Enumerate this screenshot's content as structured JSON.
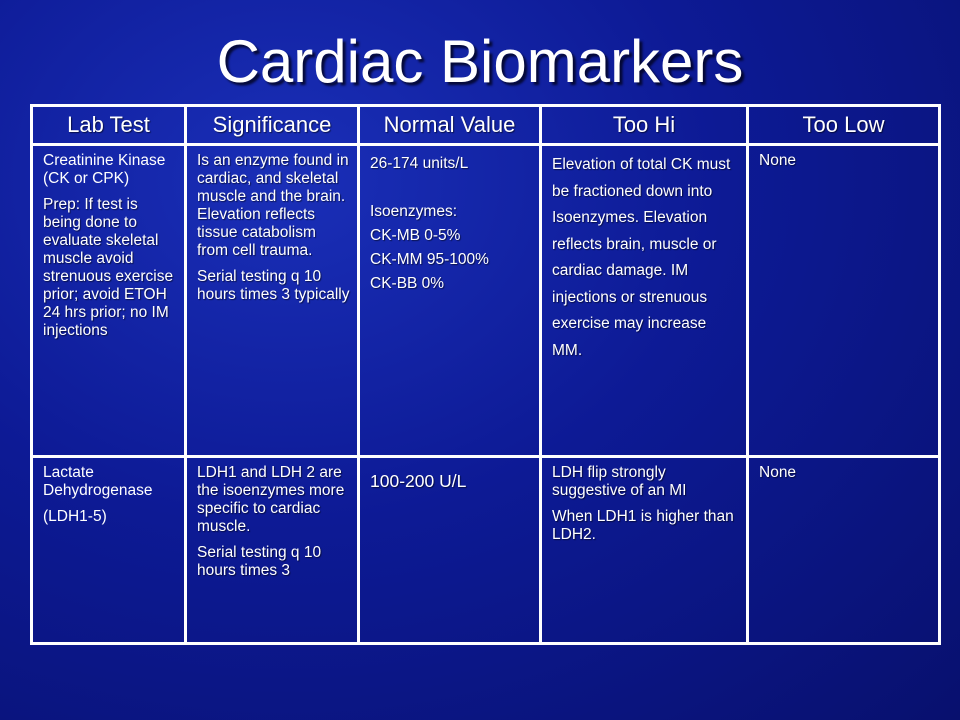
{
  "title": "Cardiac Biomarkers",
  "colors": {
    "background": "#0d1a95",
    "text": "#ffffff",
    "border": "#ffffff"
  },
  "table": {
    "headers": [
      "Lab Test",
      "Significance",
      "Normal Value",
      "Too Hi",
      "Too Low"
    ],
    "rows": [
      {
        "lab_test": {
          "name": "Creatinine Kinase (CK or CPK)",
          "prep": "Prep: If test is being done to evaluate skeletal muscle avoid strenuous exercise prior; avoid ETOH 24 hrs prior; no IM injections"
        },
        "significance": {
          "text": "Is an enzyme found in cardiac, and skeletal muscle and the brain. Elevation reflects tissue catabolism from cell trauma.",
          "serial": "Serial testing q 10 hours times 3 typically"
        },
        "normal_value": {
          "range": "26-174 units/L",
          "isoenzymes_label": "Isoenzymes:",
          "isoenzymes": [
            "CK-MB 0-5%",
            "CK-MM 95-100%",
            "CK-BB 0%"
          ]
        },
        "too_hi": "Elevation of total CK must be fractioned down into Isoenzymes. Elevation reflects brain, muscle or cardiac damage. IM injections or strenuous exercise may increase MM.",
        "too_low": "None"
      },
      {
        "lab_test": {
          "name": "Lactate Dehydrogenase",
          "abbr": "(LDH1-5)"
        },
        "significance": {
          "text": "LDH1 and LDH 2 are the isoenzymes more specific to cardiac muscle.",
          "serial": "Serial testing q 10 hours times 3"
        },
        "normal_value": {
          "range": "100-200 U/L"
        },
        "too_hi": {
          "line1": "LDH flip strongly suggestive of an MI",
          "line2": "When LDH1 is higher than LDH2."
        },
        "too_low": "None"
      }
    ]
  }
}
